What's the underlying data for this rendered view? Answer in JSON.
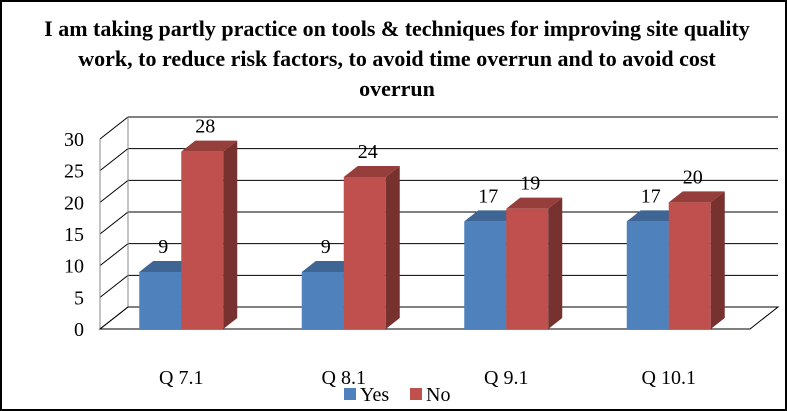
{
  "chart_data": {
    "type": "bar",
    "title": "I am taking partly practice on tools & techniques for improving site quality work, to reduce risk factors, to avoid time overrun and to avoid cost overrun",
    "categories": [
      "Q 7.1",
      "Q 8.1",
      "Q 9.1",
      "Q 10.1"
    ],
    "series": [
      {
        "name": "Yes",
        "values": [
          9,
          9,
          17,
          17
        ],
        "color": "#4F81BD"
      },
      {
        "name": "No",
        "values": [
          28,
          24,
          19,
          20
        ],
        "color": "#C0504D"
      }
    ],
    "ylim": [
      0,
      30
    ],
    "yticks": [
      0,
      5,
      10,
      15,
      20,
      25,
      30
    ],
    "xlabel": "",
    "ylabel": "",
    "grid": true,
    "legend": "bottom",
    "style": "3d-clustered-bar"
  }
}
